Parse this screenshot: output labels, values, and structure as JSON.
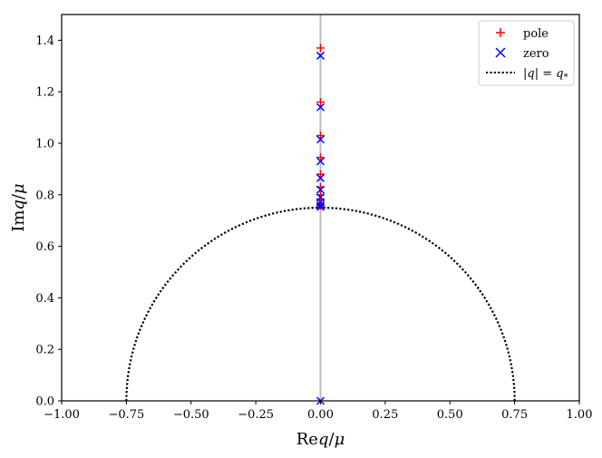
{
  "chart_data": {
    "type": "scatter",
    "title": "",
    "xlabel": "Req/μ",
    "ylabel": "Imq/μ",
    "xlim": [
      -1.0,
      1.0
    ],
    "ylim": [
      0.0,
      1.5
    ],
    "x_ticks": [
      -1.0,
      -0.75,
      -0.5,
      -0.25,
      0.0,
      0.25,
      0.5,
      0.75,
      1.0
    ],
    "x_tick_labels": [
      "−1.00",
      "−0.75",
      "−0.50",
      "−0.25",
      "0.00",
      "0.25",
      "0.50",
      "0.75",
      "1.00"
    ],
    "y_ticks": [
      0.0,
      0.2,
      0.4,
      0.6,
      0.8,
      1.0,
      1.2,
      1.4
    ],
    "y_tick_labels": [
      "0.0",
      "0.2",
      "0.4",
      "0.6",
      "0.8",
      "1.0",
      "1.2",
      "1.4"
    ],
    "grid": false,
    "legend_position": "top-right",
    "vertical_line": {
      "x": 0.0,
      "color": "#bbbbbb"
    },
    "series": [
      {
        "name": "pole",
        "marker": "+",
        "color": "#ff0000",
        "points": [
          {
            "x": 0.0,
            "y": 1.37
          },
          {
            "x": 0.0,
            "y": 1.16
          },
          {
            "x": 0.0,
            "y": 1.03
          },
          {
            "x": 0.0,
            "y": 0.945
          },
          {
            "x": 0.0,
            "y": 0.88
          },
          {
            "x": 0.0,
            "y": 0.83
          },
          {
            "x": 0.0,
            "y": 0.8
          },
          {
            "x": 0.0,
            "y": 0.78
          },
          {
            "x": 0.0,
            "y": 0.765
          },
          {
            "x": 0.0,
            "y": 0.757
          }
        ]
      },
      {
        "name": "zero",
        "marker": "x",
        "color": "#0000ff",
        "points": [
          {
            "x": 0.0,
            "y": 1.34
          },
          {
            "x": 0.0,
            "y": 1.14
          },
          {
            "x": 0.0,
            "y": 1.015
          },
          {
            "x": 0.0,
            "y": 0.93
          },
          {
            "x": 0.0,
            "y": 0.865
          },
          {
            "x": 0.0,
            "y": 0.82
          },
          {
            "x": 0.0,
            "y": 0.79
          },
          {
            "x": 0.0,
            "y": 0.772
          },
          {
            "x": 0.0,
            "y": 0.76
          },
          {
            "x": 0.0,
            "y": 0.753
          },
          {
            "x": 0.0,
            "y": 0.0
          }
        ]
      },
      {
        "name": "|q| = q*",
        "type": "line",
        "style": "dotted",
        "color": "#000000",
        "circle": {
          "center": [
            0.0,
            0.0
          ],
          "radius": 0.75
        }
      }
    ]
  }
}
